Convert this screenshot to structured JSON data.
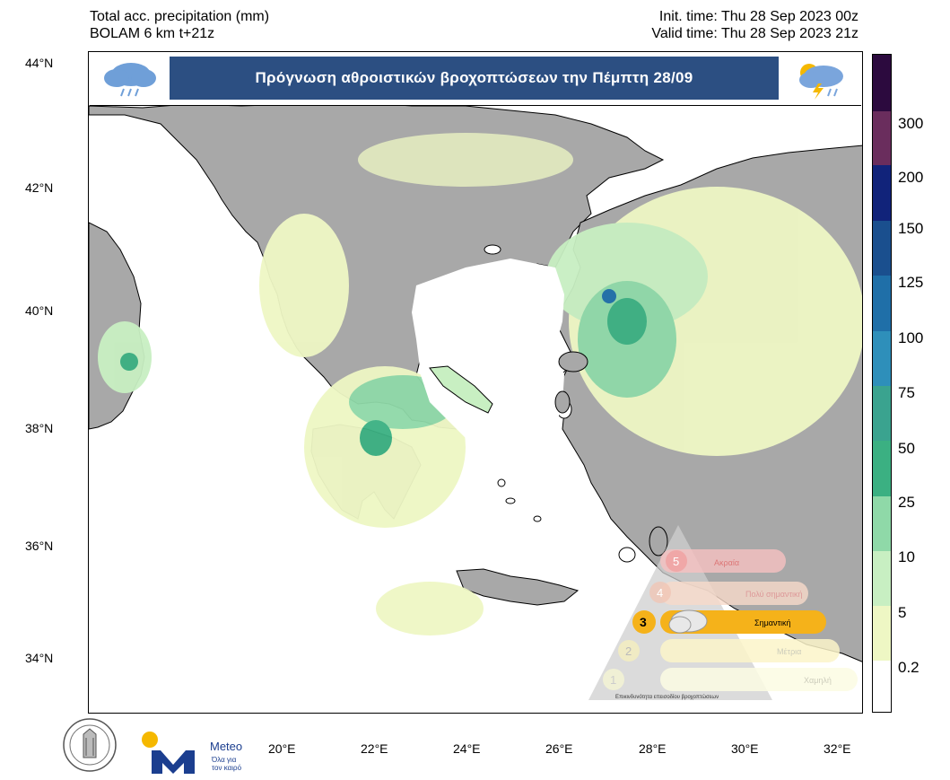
{
  "header": {
    "product": "Total acc. precipitation (mm)",
    "model": "BOLAM 6 km t+21z",
    "init_time": "Init. time: Thu 28 Sep 2023 00z",
    "valid_time": "Valid time: Thu 28 Sep 2023 21z"
  },
  "banner": {
    "title": "Πρόγνωση αθροιστικών βροχοπτώσεων την Πέμπτη 28/09",
    "left_icon": "rain-cloud-icon",
    "right_icon": "thunderstorm-cloud-icon"
  },
  "axes": {
    "lat_labels": [
      "44°N",
      "42°N",
      "40°N",
      "38°N",
      "36°N",
      "34°N"
    ],
    "lon_labels": [
      "20°E",
      "22°E",
      "24°E",
      "26°E",
      "28°E",
      "30°E",
      "32°E"
    ]
  },
  "colorbar": {
    "labels": [
      "300",
      "200",
      "150",
      "125",
      "100",
      "75",
      "50",
      "25",
      "10",
      "5",
      "0.2"
    ],
    "colors": [
      "#2c0a3e",
      "#6a2d5d",
      "#11237a",
      "#1a4f8e",
      "#1f6fa8",
      "#2e8fba",
      "#3aa38f",
      "#3bb082",
      "#8fd9a8",
      "#c8efc2",
      "#eef7c4",
      "#ffffff"
    ]
  },
  "risk_scale": {
    "levels": [
      "Ακραία",
      "Πολύ σημαντική",
      "Σημαντική",
      "Μέτρια",
      "Χαμηλή"
    ],
    "numbers": [
      "5",
      "4",
      "3",
      "2",
      "1"
    ],
    "active_level": "3",
    "caption": "Επικινδυνότητα επεισοδίου βροχοπτώσεων"
  },
  "branding": {
    "meteo_name": "Meteo",
    "meteo_tagline_1": "Όλα για",
    "meteo_tagline_2": "τον καιρό"
  },
  "colors": {
    "sea": "#ffffff",
    "land": "#a8a8a8",
    "banner_bg": "#2c4f82",
    "meteo_blue": "#1b3e8f",
    "meteo_yellow": "#f5b800"
  }
}
